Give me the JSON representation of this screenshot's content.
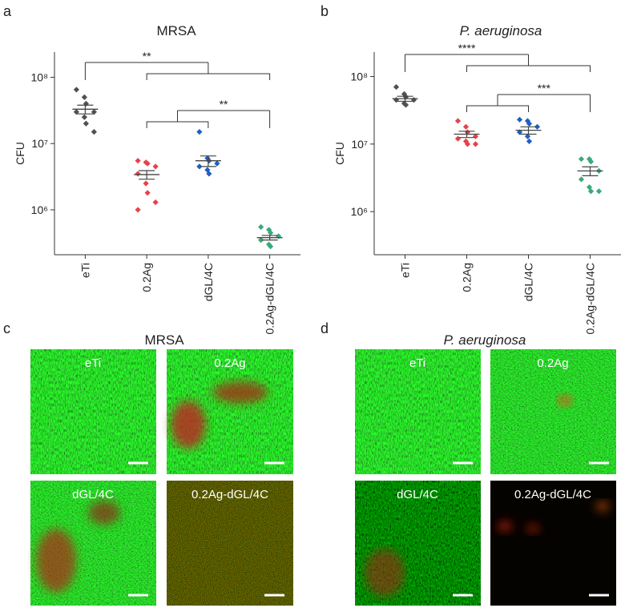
{
  "chart_data": [
    {
      "type": "dot",
      "panel": "a",
      "title": "MRSA",
      "y_label": "CFU",
      "log_scale": true,
      "categories": [
        "eTi",
        "0.2Ag",
        "dGL/4C",
        "0.2Ag-dGL/4C"
      ],
      "colors": [
        "#505050",
        "#e8414b",
        "#1f5fc4",
        "#3aaa7a"
      ],
      "points": [
        [
          65000000,
          50000000,
          40000000,
          30000000,
          30000000,
          25000000,
          20000000,
          15000000
        ],
        [
          5500000,
          5200000,
          5000000,
          4500000,
          3500000,
          2500000,
          1800000,
          1300000,
          1000000
        ],
        [
          15000000,
          6000000,
          5500000,
          5000000,
          4500000,
          4000000,
          3500000
        ],
        [
          550000,
          500000,
          450000,
          400000,
          350000,
          300000,
          280000
        ]
      ],
      "means": [
        33000000,
        3400000,
        5500000,
        380000
      ],
      "errors": [
        5000000,
        500000,
        1000000,
        30000
      ],
      "annotations": [
        "**",
        "**"
      ],
      "ylim": [
        210000,
        240000000
      ],
      "yticks": [
        {
          "value": 1000000,
          "label": "10⁶"
        },
        {
          "value": 10000000,
          "label": "10⁷"
        },
        {
          "value": 100000000,
          "label": "10⁸"
        }
      ]
    },
    {
      "type": "dot",
      "panel": "b",
      "title": "P. aeruginosa",
      "y_label": "CFU",
      "log_scale": true,
      "categories": [
        "eTi",
        "0.2Ag",
        "dGL/4C",
        "0.2Ag-dGL/4C"
      ],
      "colors": [
        "#505050",
        "#e8414b",
        "#1f5fc4",
        "#3aaa7a"
      ],
      "points": [
        [
          70000000,
          55000000,
          50000000,
          45000000,
          45000000,
          40000000,
          38000000
        ],
        [
          22000000,
          18000000,
          15000000,
          13000000,
          12000000,
          11000000,
          10000000,
          10000000
        ],
        [
          23000000,
          22000000,
          20000000,
          18000000,
          15000000,
          13000000,
          11000000
        ],
        [
          6000000,
          6000000,
          5500000,
          4000000,
          3000000,
          2300000,
          2000000,
          2000000
        ]
      ],
      "means": [
        47000000,
        14000000,
        16000000,
        4000000
      ],
      "errors": [
        4000000,
        1500000,
        2000000,
        600000
      ],
      "annotations": [
        "****",
        "***"
      ],
      "ylim": [
        230000,
        230000000
      ],
      "yticks": [
        {
          "value": 1000000,
          "label": "10⁶"
        },
        {
          "value": 10000000,
          "label": "10⁷"
        },
        {
          "value": 100000000,
          "label": "10⁸"
        }
      ]
    }
  ],
  "microscopy": [
    {
      "panel": "c",
      "title": "MRSA",
      "images": [
        "eTi",
        "0.2Ag",
        "dGL/4C",
        "0.2Ag-dGL/4C"
      ]
    },
    {
      "panel": "d",
      "title": "P. aeruginosa",
      "images": [
        "eTi",
        "0.2Ag",
        "dGL/4C",
        "0.2Ag-dGL/4C"
      ]
    }
  ]
}
